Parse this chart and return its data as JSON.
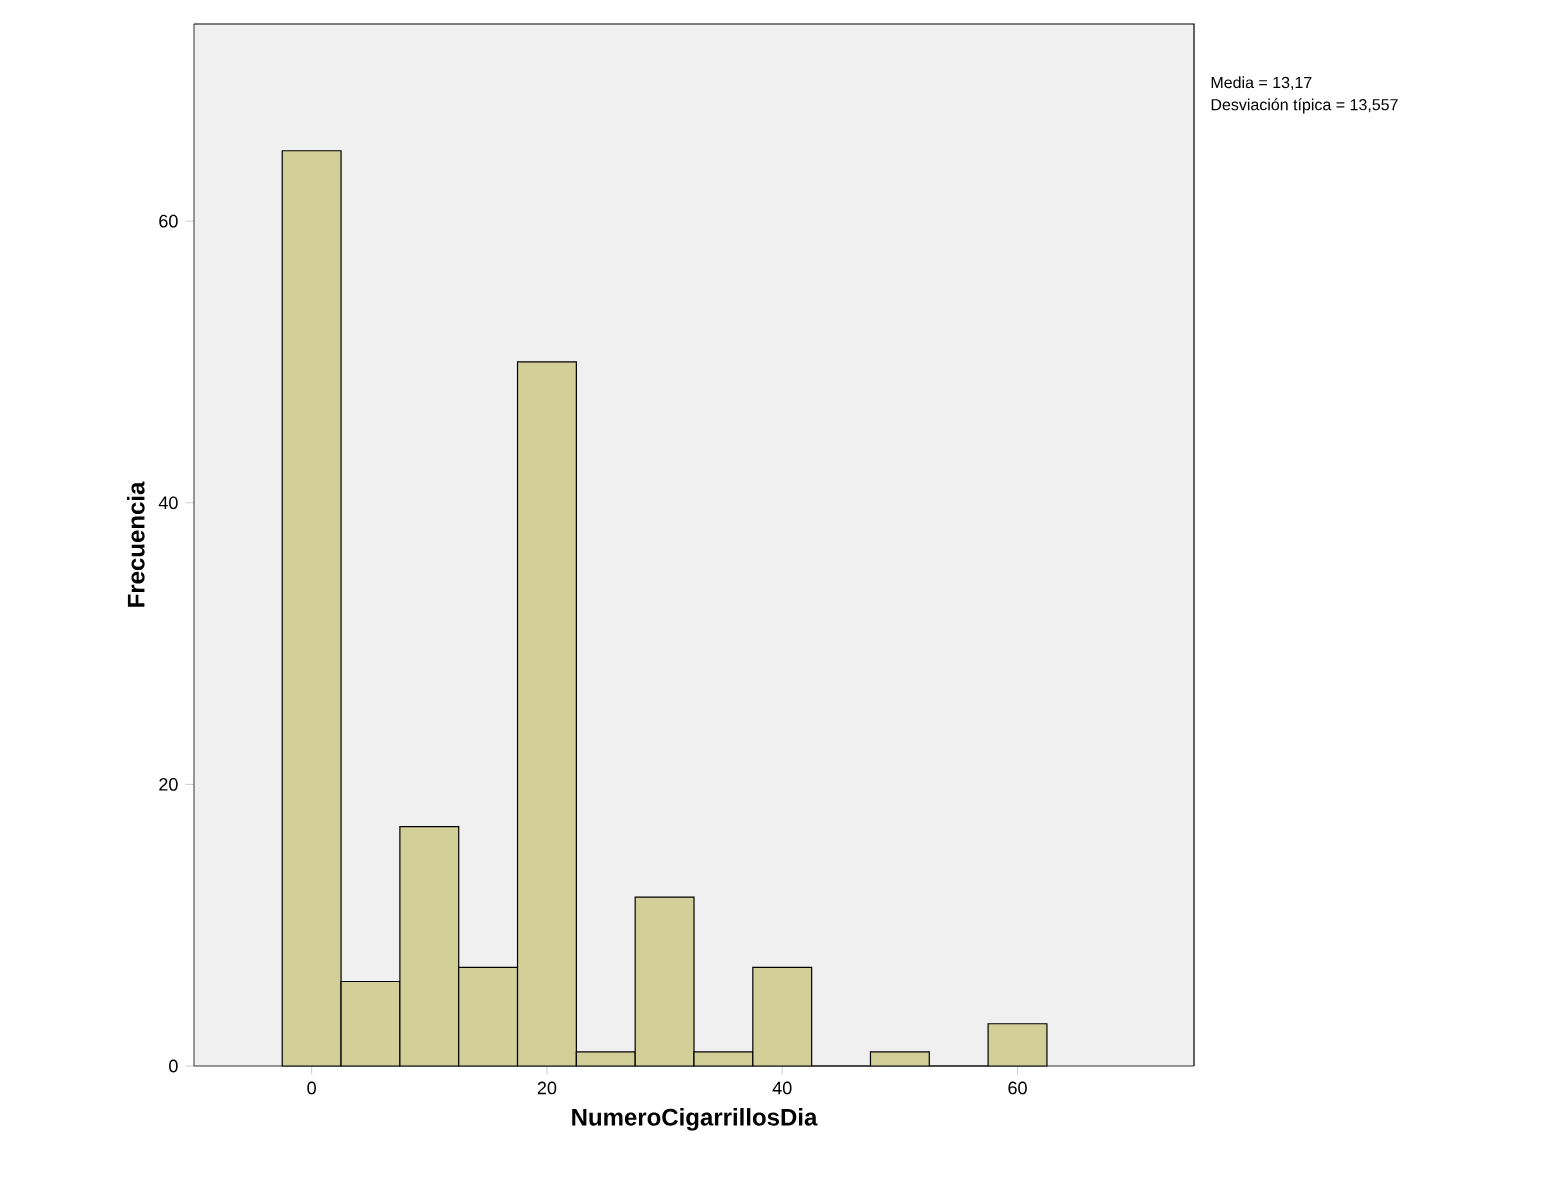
{
  "chart_data": {
    "type": "histogram",
    "xlabel": "NumeroCigarrillosDia",
    "ylabel": "Frecuencia",
    "bins": [
      -2.5,
      2.5,
      7.5,
      12.5,
      17.5,
      22.5,
      27.5,
      32.5,
      37.5,
      42.5,
      47.5,
      52.5,
      57.5,
      62.5
    ],
    "values": [
      65,
      6,
      17,
      7,
      50,
      1,
      12,
      1,
      7,
      0,
      1,
      0,
      3
    ],
    "color": "#d3cf99",
    "xlim": [
      -10,
      75
    ],
    "xticks": [
      0,
      20,
      40,
      60
    ],
    "ylim": [
      0,
      74
    ],
    "yticks": [
      0,
      20,
      40,
      60
    ],
    "grid": false,
    "annotations": [
      "Media = 13,17",
      "Desviación típica = 13,557"
    ]
  }
}
